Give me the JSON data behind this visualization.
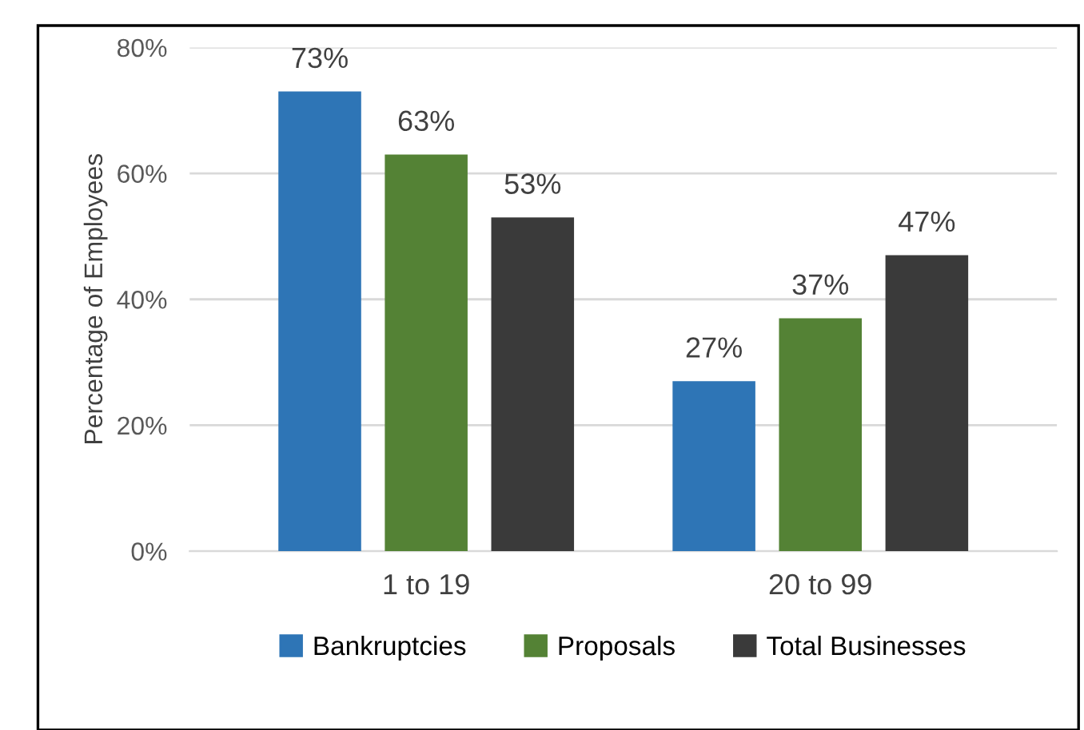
{
  "chart_data": {
    "type": "bar",
    "ylabel": "Percentage of Employees",
    "categories": [
      "1 to 19",
      "20 to 99"
    ],
    "series": [
      {
        "name": "Bankruptcies",
        "color": "#2e75b6",
        "values": [
          73,
          27
        ],
        "value_labels": [
          "73%",
          "27%"
        ]
      },
      {
        "name": "Proposals",
        "color": "#548235",
        "values": [
          63,
          37
        ],
        "value_labels": [
          "63%",
          "37%"
        ]
      },
      {
        "name": "Total Businesses",
        "color": "#3a3a3a",
        "values": [
          53,
          47
        ],
        "value_labels": [
          "53%",
          "47%"
        ]
      }
    ],
    "ylim": [
      0,
      80
    ],
    "yticks": [
      {
        "value": 0,
        "label": "0%"
      },
      {
        "value": 20,
        "label": "20%"
      },
      {
        "value": 40,
        "label": "40%"
      },
      {
        "value": 60,
        "label": "60%"
      },
      {
        "value": 80,
        "label": "80%"
      }
    ],
    "grid": "y",
    "legend": "bottom"
  }
}
